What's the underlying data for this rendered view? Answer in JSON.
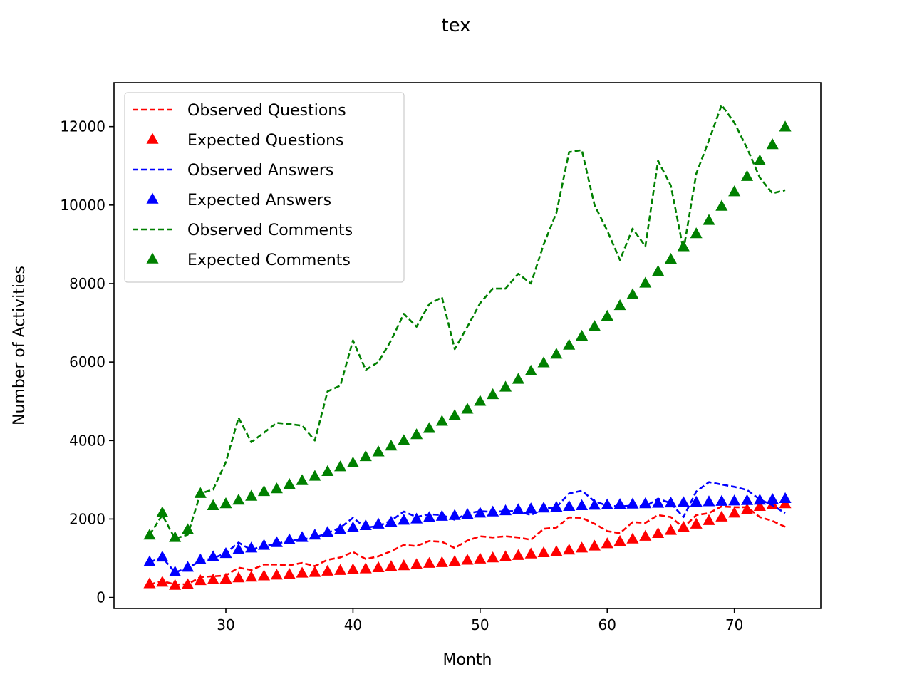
{
  "chart_data": {
    "type": "line",
    "title": "tex",
    "xlabel": "Month",
    "ylabel": "Number of Activities",
    "xlim": [
      21.2,
      76.8
    ],
    "ylim": [
      -280,
      13120
    ],
    "xticks": [
      30,
      40,
      50,
      60,
      70
    ],
    "yticks": [
      0,
      2000,
      4000,
      6000,
      8000,
      10000,
      12000
    ],
    "grid": false,
    "legend_position": "upper-left",
    "x": [
      24,
      25,
      26,
      27,
      28,
      29,
      30,
      31,
      32,
      33,
      34,
      35,
      36,
      37,
      38,
      39,
      40,
      41,
      42,
      43,
      44,
      45,
      46,
      47,
      48,
      49,
      50,
      51,
      52,
      53,
      54,
      55,
      56,
      57,
      58,
      59,
      60,
      61,
      62,
      63,
      64,
      65,
      66,
      67,
      68,
      69,
      70,
      71,
      72,
      73,
      74
    ],
    "series": [
      {
        "name": "Observed Questions",
        "style": "dashed-line",
        "color": "#ff0000",
        "values": [
          330,
          420,
          330,
          340,
          520,
          540,
          560,
          760,
          700,
          840,
          840,
          820,
          880,
          800,
          960,
          1020,
          1160,
          980,
          1050,
          1180,
          1340,
          1310,
          1440,
          1420,
          1260,
          1450,
          1560,
          1530,
          1560,
          1530,
          1470,
          1750,
          1780,
          2040,
          2030,
          1880,
          1690,
          1640,
          1920,
          1900,
          2100,
          2050,
          1780,
          2100,
          2150,
          2320,
          2300,
          2300,
          2050,
          1950,
          1800
        ]
      },
      {
        "name": "Expected Questions",
        "style": "triangle-markers",
        "color": "#ff0000",
        "values": [
          340,
          380,
          300,
          320,
          420,
          440,
          460,
          490,
          510,
          540,
          560,
          580,
          610,
          630,
          660,
          680,
          700,
          720,
          750,
          780,
          800,
          830,
          860,
          880,
          910,
          940,
          970,
          1000,
          1030,
          1060,
          1100,
          1130,
          1160,
          1200,
          1250,
          1300,
          1360,
          1420,
          1480,
          1550,
          1620,
          1700,
          1780,
          1860,
          1950,
          2040,
          2140,
          2230,
          2310,
          2360,
          2380
        ]
      },
      {
        "name": "Observed Answers",
        "style": "dashed-line",
        "color": "#0000ff",
        "values": [
          900,
          1020,
          640,
          750,
          930,
          1000,
          1130,
          1400,
          1210,
          1320,
          1360,
          1460,
          1480,
          1530,
          1640,
          1780,
          2030,
          1780,
          1820,
          1960,
          2190,
          2050,
          2120,
          2100,
          1980,
          2140,
          2200,
          2180,
          2200,
          2200,
          2100,
          2260,
          2300,
          2650,
          2720,
          2450,
          2340,
          2320,
          2340,
          2320,
          2520,
          2400,
          2050,
          2700,
          2940,
          2880,
          2820,
          2740,
          2500,
          2350,
          2150
        ]
      },
      {
        "name": "Expected Answers",
        "style": "triangle-markers",
        "color": "#0000ff",
        "values": [
          900,
          1020,
          640,
          760,
          950,
          1030,
          1110,
          1210,
          1250,
          1320,
          1390,
          1460,
          1520,
          1580,
          1650,
          1720,
          1770,
          1820,
          1860,
          1910,
          1960,
          1990,
          2030,
          2060,
          2080,
          2110,
          2140,
          2170,
          2200,
          2230,
          2250,
          2270,
          2290,
          2310,
          2330,
          2340,
          2350,
          2360,
          2370,
          2380,
          2390,
          2400,
          2410,
          2420,
          2430,
          2440,
          2450,
          2460,
          2470,
          2490,
          2510
        ]
      },
      {
        "name": "Observed Comments",
        "style": "dashed-line",
        "color": "#008000",
        "values": [
          1600,
          2100,
          1500,
          1600,
          2650,
          2750,
          3450,
          4580,
          3960,
          4200,
          4450,
          4420,
          4380,
          4000,
          5250,
          5400,
          6550,
          5800,
          6000,
          6550,
          7230,
          6900,
          7480,
          7650,
          6330,
          6900,
          7500,
          7870,
          7870,
          8250,
          8000,
          9000,
          9800,
          11350,
          11400,
          10000,
          9350,
          8600,
          9400,
          8950,
          11130,
          10500,
          8850,
          10800,
          11650,
          12550,
          12100,
          11450,
          10700,
          10300,
          10380
        ]
      },
      {
        "name": "Expected Comments",
        "style": "triangle-markers",
        "color": "#008000",
        "values": [
          1580,
          2150,
          1520,
          1720,
          2640,
          2330,
          2380,
          2470,
          2570,
          2690,
          2760,
          2870,
          2970,
          3080,
          3200,
          3320,
          3420,
          3580,
          3700,
          3850,
          3990,
          4140,
          4300,
          4480,
          4630,
          4790,
          4990,
          5160,
          5350,
          5550,
          5760,
          5970,
          6190,
          6420,
          6650,
          6900,
          7160,
          7430,
          7710,
          8000,
          8300,
          8610,
          8930,
          9260,
          9600,
          9960,
          10330,
          10720,
          11120,
          11530,
          11980
        ]
      }
    ]
  }
}
